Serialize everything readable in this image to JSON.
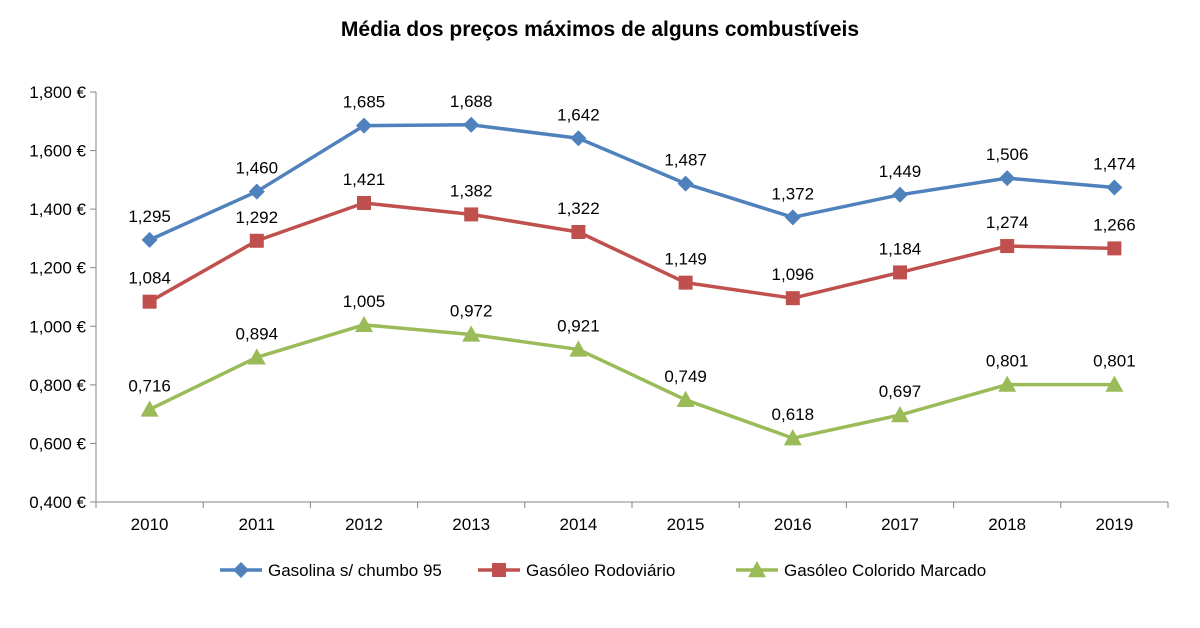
{
  "chart_data": {
    "type": "line",
    "title": "Média dos preços máximos  de alguns combustíveis",
    "categories": [
      "2010",
      "2011",
      "2012",
      "2013",
      "2014",
      "2015",
      "2016",
      "2017",
      "2018",
      "2019"
    ],
    "y_tick_labels": [
      "0,400 €",
      "0,600 €",
      "0,800 €",
      "1,000 €",
      "1,200 €",
      "1,400 €",
      "1,600 €",
      "1,800 €"
    ],
    "ylim": [
      0.4,
      1.8
    ],
    "y_ticks": [
      0.4,
      0.6,
      0.8,
      1.0,
      1.2,
      1.4,
      1.6,
      1.8
    ],
    "grid": false,
    "legend_position": "bottom",
    "series": [
      {
        "name": "Gasolina s/ chumbo 95",
        "color": "#4F81BD",
        "marker": "diamond",
        "values": [
          1.295,
          1.46,
          1.685,
          1.688,
          1.642,
          1.487,
          1.372,
          1.449,
          1.506,
          1.474
        ],
        "labels": [
          "1,295",
          "1,460",
          "1,685",
          "1,688",
          "1,642",
          "1,487",
          "1,372",
          "1,449",
          "1,506",
          "1,474"
        ]
      },
      {
        "name": "Gasóleo  Rodoviário",
        "color": "#C0504D",
        "marker": "square",
        "values": [
          1.084,
          1.292,
          1.421,
          1.382,
          1.322,
          1.149,
          1.096,
          1.184,
          1.274,
          1.266
        ],
        "labels": [
          "1,084",
          "1,292",
          "1,421",
          "1,382",
          "1,322",
          "1,149",
          "1,096",
          "1,184",
          "1,274",
          "1,266"
        ]
      },
      {
        "name": "Gasóleo Colorido Marcado",
        "color": "#9BBB59",
        "marker": "triangle",
        "values": [
          0.716,
          0.894,
          1.005,
          0.972,
          0.921,
          0.749,
          0.618,
          0.697,
          0.801,
          0.801
        ],
        "labels": [
          "0,716",
          "0,894",
          "1,005",
          "0,972",
          "0,921",
          "0,749",
          "0,618",
          "0,697",
          "0,801",
          "0,801"
        ]
      }
    ]
  }
}
